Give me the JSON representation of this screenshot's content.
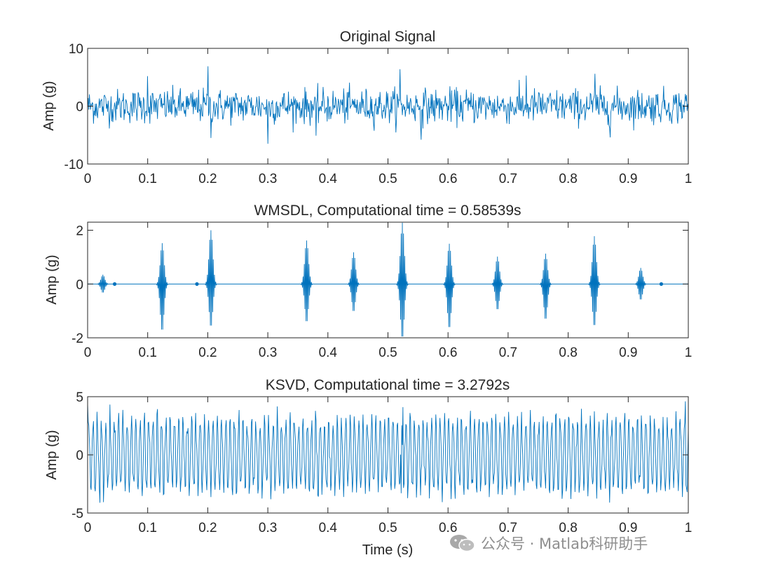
{
  "figure": {
    "xlabel": "Time (s)",
    "watermark": "公众号 · Matlab科研助手",
    "watermark_icon": "wechat-icon",
    "line_color": "#0072BD",
    "axis_color": "#262626",
    "background": "#ffffff"
  },
  "chart_data": [
    {
      "type": "line",
      "title": "Original Signal",
      "xlabel": "",
      "ylabel": "Amp (g)",
      "xlim": [
        0,
        1
      ],
      "ylim": [
        -10,
        10
      ],
      "xticks": [
        "0",
        "0.1",
        "0.2",
        "0.3",
        "0.4",
        "0.5",
        "0.6",
        "0.7",
        "0.8",
        "0.9",
        "1"
      ],
      "yticks": [
        {
          "value": 10,
          "label": "10"
        },
        {
          "value": 0,
          "label": "0"
        },
        {
          "value": -10,
          "label": "-10"
        }
      ],
      "grid": false,
      "signal": "broadband noise",
      "samples": 1024,
      "typical_amplitude": 3.5,
      "peaks": [
        {
          "t": 0.2,
          "value": 6.9
        },
        {
          "t": 0.3,
          "value": -6.5
        },
        {
          "t": 0.52,
          "value": 6.4
        },
        {
          "t": 0.555,
          "value": -5.8
        },
        {
          "t": 0.205,
          "value": -5.5
        },
        {
          "t": 0.1,
          "value": 5.2
        },
        {
          "t": 0.73,
          "value": 5.3
        },
        {
          "t": 0.845,
          "value": 5.6
        },
        {
          "t": 0.87,
          "value": -5.4
        },
        {
          "t": 0.38,
          "value": -5.1
        }
      ]
    },
    {
      "type": "line",
      "title": "WMSDL, Computational time = 0.58539s",
      "xlabel": "",
      "ylabel": "Amp (g)",
      "xlim": [
        0,
        1
      ],
      "ylim": [
        -2,
        2.3
      ],
      "xticks": [
        "0",
        "0.1",
        "0.2",
        "0.3",
        "0.4",
        "0.5",
        "0.6",
        "0.7",
        "0.8",
        "0.9",
        "1"
      ],
      "yticks": [
        {
          "value": 2,
          "label": "2"
        },
        {
          "value": 0,
          "label": "0"
        },
        {
          "value": -2,
          "label": "-2"
        }
      ],
      "grid": false,
      "signal": "sparse impulses",
      "samples": 1024,
      "impulses": [
        {
          "t": 0.025,
          "max": 0.35,
          "min": -0.33
        },
        {
          "t": 0.124,
          "max": 1.52,
          "min": -1.78
        },
        {
          "t": 0.205,
          "max": 2.0,
          "min": -1.62
        },
        {
          "t": 0.365,
          "max": 1.62,
          "min": -1.45
        },
        {
          "t": 0.443,
          "max": 1.18,
          "min": -1.05
        },
        {
          "t": 0.524,
          "max": 2.28,
          "min": -2.05
        },
        {
          "t": 0.602,
          "max": 1.5,
          "min": -1.68
        },
        {
          "t": 0.682,
          "max": 1.02,
          "min": -0.98
        },
        {
          "t": 0.762,
          "max": 1.13,
          "min": -1.35
        },
        {
          "t": 0.844,
          "max": 1.78,
          "min": -1.6
        },
        {
          "t": 0.921,
          "max": 0.6,
          "min": -0.6
        }
      ],
      "dots": [
        0.045,
        0.182,
        0.955
      ]
    },
    {
      "type": "line",
      "title": "KSVD, Computational time = 3.2792s",
      "xlabel": "Time (s)",
      "ylabel": "Amp (g)",
      "xlim": [
        0,
        1
      ],
      "ylim": [
        -5,
        5
      ],
      "xticks": [
        "0",
        "0.1",
        "0.2",
        "0.3",
        "0.4",
        "0.5",
        "0.6",
        "0.7",
        "0.8",
        "0.9",
        "1"
      ],
      "yticks": [
        {
          "value": 5,
          "label": "5"
        },
        {
          "value": 0,
          "label": "0"
        },
        {
          "value": -5,
          "label": "-5"
        }
      ],
      "grid": false,
      "signal": "periodic oscillation",
      "samples": 1024,
      "typical_amplitude": 3.6,
      "peaks": [
        {
          "t": 0.525,
          "value": 4.1
        },
        {
          "t": 0.0,
          "value": 4.4
        },
        {
          "t": 0.995,
          "value": 4.6
        },
        {
          "t": 0.998,
          "value": -3.2
        },
        {
          "t": 0.522,
          "value": -3.3
        }
      ]
    }
  ]
}
